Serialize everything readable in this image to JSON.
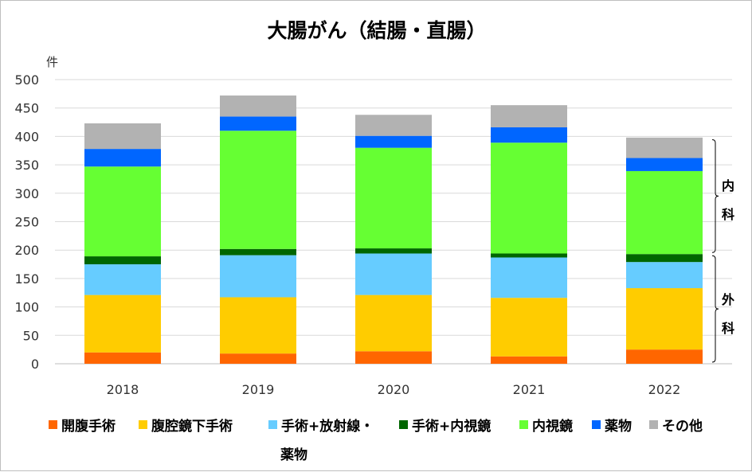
{
  "chart_data": {
    "type": "bar",
    "stacked": true,
    "title": "大腸がん（結腸・直腸）",
    "ylabel": "件",
    "ylim": [
      0,
      500
    ],
    "yticks": [
      0,
      50,
      100,
      150,
      200,
      250,
      300,
      350,
      400,
      450,
      500
    ],
    "grid": true,
    "legend_position": "bottom",
    "categories": [
      "2018",
      "2019",
      "2020",
      "2021",
      "2022"
    ],
    "series": [
      {
        "name": "開腹手術",
        "color": "#ff6600",
        "values": [
          20,
          18,
          22,
          13,
          25
        ]
      },
      {
        "name": "腹腔鏡下手術",
        "color": "#ffcc00",
        "values": [
          101,
          99,
          99,
          103,
          108
        ]
      },
      {
        "name": "手術+放射線・薬物",
        "color": "#66ccff",
        "values": [
          54,
          74,
          73,
          71,
          46
        ]
      },
      {
        "name": "手術+内視鏡",
        "color": "#006600",
        "values": [
          14,
          11,
          9,
          7,
          14
        ]
      },
      {
        "name": "内視鏡",
        "color": "#66ff33",
        "values": [
          158,
          208,
          177,
          195,
          146
        ]
      },
      {
        "name": "薬物",
        "color": "#0066ff",
        "values": [
          31,
          25,
          21,
          27,
          23
        ]
      },
      {
        "name": "その他",
        "color": "#b2b2b2",
        "values": [
          45,
          37,
          37,
          39,
          36
        ]
      }
    ],
    "annotations": [
      {
        "text": "内科",
        "range": [
          193,
          397
        ]
      },
      {
        "text": "外科",
        "range": [
          0,
          193
        ]
      }
    ]
  },
  "legend_labels": {
    "s0": "開腹手術",
    "s1": "腹腔鏡下手術",
    "s2": "手術+放射線・",
    "s2b": "薬物",
    "s3": "手術+内視鏡",
    "s4": "内視鏡",
    "s5": "薬物",
    "s6": "その他"
  },
  "brace_labels": {
    "internal_1": "内",
    "internal_2": "科",
    "surgery_1": "外",
    "surgery_2": "科"
  }
}
